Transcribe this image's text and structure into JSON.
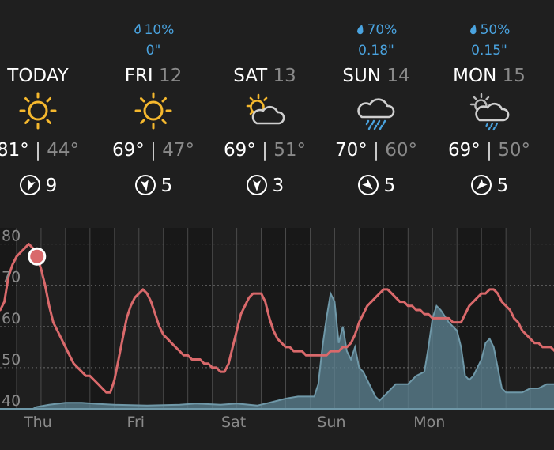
{
  "days": [
    {
      "name": "TODAY",
      "num": "",
      "precip_pct": "",
      "precip_amt": "",
      "icon": "sun-icon",
      "hi": "81°",
      "lo": "44°",
      "wind_speed": "9",
      "wind_dir": 200
    },
    {
      "name": "FRI",
      "num": "12",
      "precip_pct": "10%",
      "precip_amt": "0\"",
      "icon": "sun-icon",
      "hi": "69°",
      "lo": "47°",
      "wind_speed": "5",
      "wind_dir": 170
    },
    {
      "name": "SAT",
      "num": "13",
      "precip_pct": "",
      "precip_amt": "",
      "icon": "partly-cloudy-icon",
      "hi": "69°",
      "lo": "51°",
      "wind_speed": "3",
      "wind_dir": 180
    },
    {
      "name": "SUN",
      "num": "14",
      "precip_pct": "70%",
      "precip_amt": "0.18\"",
      "icon": "rain-cloud-icon",
      "hi": "70°",
      "lo": "60°",
      "wind_speed": "5",
      "wind_dir": 135
    },
    {
      "name": "MON",
      "num": "15",
      "precip_pct": "50%",
      "precip_amt": "0.15\"",
      "icon": "partly-cloudy-rain-icon",
      "hi": "69°",
      "lo": "50°",
      "wind_speed": "5",
      "wind_dir": 225
    }
  ],
  "colors": {
    "background": "#1f1f1f",
    "precip_text": "#4aa3df",
    "sun": "#f5b82e",
    "temp_line": "#d9696b",
    "precip_area": "#5d8494",
    "grid": "#4a4a4a",
    "muted": "#8a8a8a"
  },
  "chart_data": {
    "type": "line",
    "x_label_ticks": [
      "Thu",
      "Fri",
      "Sat",
      "Sun",
      "Mon"
    ],
    "y_ticks": [
      40,
      50,
      60,
      70,
      80
    ],
    "ylim": [
      40,
      83
    ],
    "x_unit": "hours from start",
    "xlim": [
      0,
      140
    ],
    "current_point": {
      "x": 11,
      "y": 77
    },
    "series": [
      {
        "kind": "temperature",
        "values": [
          [
            0,
            65
          ],
          [
            1,
            64
          ],
          [
            2,
            64
          ],
          [
            3,
            66
          ],
          [
            4,
            72
          ],
          [
            5,
            75
          ],
          [
            6,
            77
          ],
          [
            7,
            78
          ],
          [
            8,
            79
          ],
          [
            9,
            80
          ],
          [
            10,
            79
          ],
          [
            11,
            77
          ],
          [
            12,
            74
          ],
          [
            13,
            70
          ],
          [
            14,
            65
          ],
          [
            15,
            61
          ],
          [
            16,
            59
          ],
          [
            17,
            57
          ],
          [
            18,
            55
          ],
          [
            19,
            53
          ],
          [
            20,
            51
          ],
          [
            21,
            50
          ],
          [
            22,
            49
          ],
          [
            23,
            48
          ],
          [
            24,
            48
          ],
          [
            25,
            47
          ],
          [
            26,
            46
          ],
          [
            27,
            45
          ],
          [
            28,
            44
          ],
          [
            29,
            44
          ],
          [
            30,
            47
          ],
          [
            31,
            52
          ],
          [
            32,
            57
          ],
          [
            33,
            62
          ],
          [
            34,
            65
          ],
          [
            35,
            67
          ],
          [
            36,
            68
          ],
          [
            37,
            69
          ],
          [
            38,
            68
          ],
          [
            39,
            66
          ],
          [
            40,
            63
          ],
          [
            41,
            60
          ],
          [
            42,
            58
          ],
          [
            43,
            57
          ],
          [
            44,
            56
          ],
          [
            45,
            55
          ],
          [
            46,
            54
          ],
          [
            47,
            53
          ],
          [
            48,
            53
          ],
          [
            49,
            52
          ],
          [
            50,
            52
          ],
          [
            51,
            52
          ],
          [
            52,
            51
          ],
          [
            53,
            51
          ],
          [
            54,
            50
          ],
          [
            55,
            50
          ],
          [
            56,
            49
          ],
          [
            57,
            49
          ],
          [
            58,
            51
          ],
          [
            59,
            55
          ],
          [
            60,
            59
          ],
          [
            61,
            63
          ],
          [
            62,
            65
          ],
          [
            63,
            67
          ],
          [
            64,
            68
          ],
          [
            65,
            68
          ],
          [
            66,
            68
          ],
          [
            67,
            66
          ],
          [
            68,
            62
          ],
          [
            69,
            59
          ],
          [
            70,
            57
          ],
          [
            71,
            56
          ],
          [
            72,
            55
          ],
          [
            73,
            55
          ],
          [
            74,
            54
          ],
          [
            75,
            54
          ],
          [
            76,
            54
          ],
          [
            77,
            53
          ],
          [
            78,
            53
          ],
          [
            79,
            53
          ],
          [
            80,
            53
          ],
          [
            81,
            53
          ],
          [
            82,
            53
          ],
          [
            83,
            54
          ],
          [
            84,
            54
          ],
          [
            85,
            54
          ],
          [
            86,
            55
          ],
          [
            87,
            55
          ],
          [
            88,
            56
          ],
          [
            89,
            58
          ],
          [
            90,
            61
          ],
          [
            91,
            63
          ],
          [
            92,
            65
          ],
          [
            93,
            66
          ],
          [
            94,
            67
          ],
          [
            95,
            68
          ],
          [
            96,
            69
          ],
          [
            97,
            69
          ],
          [
            98,
            68
          ],
          [
            99,
            67
          ],
          [
            100,
            66
          ],
          [
            101,
            66
          ],
          [
            102,
            65
          ],
          [
            103,
            65
          ],
          [
            104,
            64
          ],
          [
            105,
            64
          ],
          [
            106,
            63
          ],
          [
            107,
            63
          ],
          [
            108,
            62
          ],
          [
            109,
            62
          ],
          [
            110,
            62
          ],
          [
            111,
            62
          ],
          [
            112,
            62
          ],
          [
            113,
            61
          ],
          [
            114,
            61
          ],
          [
            115,
            61
          ],
          [
            116,
            63
          ],
          [
            117,
            65
          ],
          [
            118,
            66
          ],
          [
            119,
            67
          ],
          [
            120,
            68
          ],
          [
            121,
            68
          ],
          [
            122,
            69
          ],
          [
            123,
            69
          ],
          [
            124,
            68
          ],
          [
            125,
            66
          ],
          [
            126,
            65
          ],
          [
            127,
            64
          ],
          [
            128,
            62
          ],
          [
            129,
            61
          ],
          [
            130,
            59
          ],
          [
            131,
            58
          ],
          [
            132,
            57
          ],
          [
            133,
            56
          ],
          [
            134,
            56
          ],
          [
            135,
            55
          ],
          [
            136,
            55
          ],
          [
            137,
            55
          ],
          [
            138,
            54
          ],
          [
            139,
            54
          ],
          [
            140,
            54
          ]
        ]
      },
      {
        "kind": "precipitation",
        "values": [
          [
            0,
            40
          ],
          [
            10,
            40
          ],
          [
            11,
            40.5
          ],
          [
            14,
            41
          ],
          [
            18,
            41.5
          ],
          [
            22,
            41.5
          ],
          [
            26,
            41.2
          ],
          [
            30,
            41
          ],
          [
            38,
            40.8
          ],
          [
            46,
            41
          ],
          [
            50,
            41.3
          ],
          [
            56,
            41
          ],
          [
            60,
            41.3
          ],
          [
            65,
            40.8
          ],
          [
            68,
            41.5
          ],
          [
            72,
            42.5
          ],
          [
            75,
            43
          ],
          [
            79,
            43
          ],
          [
            80,
            46
          ],
          [
            81,
            55
          ],
          [
            82,
            62
          ],
          [
            83,
            68
          ],
          [
            84,
            66
          ],
          [
            85,
            56
          ],
          [
            86,
            60
          ],
          [
            87,
            54
          ],
          [
            88,
            52
          ],
          [
            89,
            55
          ],
          [
            90,
            50
          ],
          [
            91,
            49
          ],
          [
            92,
            47
          ],
          [
            94,
            43
          ],
          [
            95,
            42
          ],
          [
            97,
            44
          ],
          [
            99,
            46
          ],
          [
            102,
            46
          ],
          [
            104,
            48
          ],
          [
            106,
            49
          ],
          [
            107,
            55
          ],
          [
            108,
            62
          ],
          [
            109,
            65
          ],
          [
            110,
            64
          ],
          [
            112,
            61
          ],
          [
            114,
            59
          ],
          [
            115,
            55
          ],
          [
            116,
            48
          ],
          [
            117,
            47
          ],
          [
            118,
            48
          ],
          [
            120,
            52
          ],
          [
            121,
            56
          ],
          [
            122,
            57
          ],
          [
            123,
            55
          ],
          [
            124,
            50
          ],
          [
            125,
            45
          ],
          [
            126,
            44
          ],
          [
            128,
            44
          ],
          [
            130,
            44
          ],
          [
            132,
            45
          ],
          [
            134,
            45
          ],
          [
            136,
            46
          ],
          [
            138,
            46
          ],
          [
            140,
            46
          ]
        ]
      }
    ]
  }
}
